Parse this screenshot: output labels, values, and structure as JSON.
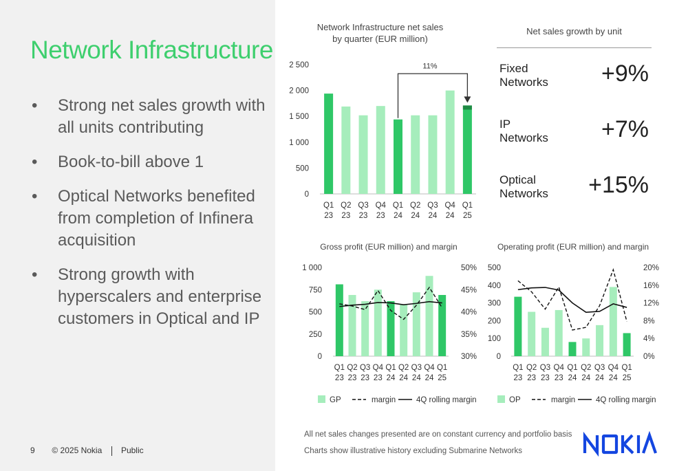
{
  "slide": {
    "title": "Network Infrastructure",
    "bullets": [
      "Strong net sales growth with all units contributing",
      "Book-to-bill above 1",
      "Optical Networks benefited from completion of Infinera acquisition",
      "Strong growth with hyperscalers and enterprise customers in Optical and IP"
    ],
    "page_number": "9",
    "copyright": "© 2025 Nokia",
    "classification": "Public",
    "notes": [
      "All net sales changes presented are on constant currency and portfolio basis",
      "Charts show illustrative history excluding Submarine Networks"
    ],
    "logo_text": "NOKIA"
  },
  "growth_panel": {
    "title": "Net sales growth by unit",
    "units": [
      {
        "name_line1": "Fixed",
        "name_line2": "Networks",
        "value": "+9%"
      },
      {
        "name_line1": "IP",
        "name_line2": "Networks",
        "value": "+7%"
      },
      {
        "name_line1": "Optical",
        "name_line2": "Networks",
        "value": "+15%"
      }
    ]
  },
  "colors": {
    "accent_green": "#3ecf6e",
    "bar_dark": "#2fc767",
    "bar_light": "#a6edbc",
    "bar_darkest": "#1f8a44",
    "brand_blue": "#1446e0"
  },
  "chart_data": [
    {
      "id": "net_sales",
      "type": "bar",
      "title_line1": "Network Infrastructure net sales",
      "title_line2": "by quarter (EUR million)",
      "categories": [
        [
          "Q1",
          "23"
        ],
        [
          "Q2",
          "23"
        ],
        [
          "Q3",
          "23"
        ],
        [
          "Q4",
          "23"
        ],
        [
          "Q1",
          "24"
        ],
        [
          "Q2",
          "24"
        ],
        [
          "Q3",
          "24"
        ],
        [
          "Q4",
          "24"
        ],
        [
          "Q1",
          "25"
        ]
      ],
      "values": [
        1940,
        1690,
        1520,
        1700,
        1440,
        1520,
        1520,
        2000,
        1710
      ],
      "highlight": [
        true,
        false,
        false,
        false,
        true,
        false,
        false,
        false,
        true
      ],
      "last_bar_top_segment": 80,
      "yticks": [
        0,
        500,
        1000,
        1500,
        2000,
        2500
      ],
      "ytick_labels": [
        "0",
        "500",
        "1 000",
        "1 500",
        "2 000",
        "2 500"
      ],
      "ylim": [
        0,
        2500
      ],
      "annotation": "11%"
    },
    {
      "id": "gross_profit",
      "type": "bar+line",
      "title": "Gross profit (EUR million) and margin",
      "categories": [
        [
          "Q1",
          "23"
        ],
        [
          "Q2",
          "23"
        ],
        [
          "Q3",
          "23"
        ],
        [
          "Q4",
          "23"
        ],
        [
          "Q1",
          "24"
        ],
        [
          "Q2",
          "24"
        ],
        [
          "Q3",
          "24"
        ],
        [
          "Q4",
          "24"
        ],
        [
          "Q1",
          "25"
        ]
      ],
      "values": [
        810,
        690,
        620,
        750,
        620,
        580,
        720,
        905,
        690
      ],
      "highlight": [
        true,
        false,
        false,
        false,
        true,
        false,
        false,
        false,
        true
      ],
      "ylim": [
        0,
        1000
      ],
      "yticks": [
        0,
        250,
        500,
        750,
        1000
      ],
      "ytick_labels": [
        "0",
        "250",
        "500",
        "750",
        "1 000"
      ],
      "y2lim": [
        30,
        50
      ],
      "y2ticks": [
        30,
        35,
        40,
        45,
        50
      ],
      "y2tick_labels": [
        "30%",
        "35%",
        "40%",
        "45%",
        "50%"
      ],
      "margin": [
        41.8,
        41.3,
        40.5,
        44.8,
        40.3,
        38.3,
        41.5,
        45.5,
        40.9
      ],
      "rolling_margin": [
        41.2,
        41.5,
        41.7,
        42.1,
        42.0,
        41.6,
        41.9,
        42.3,
        42.0
      ],
      "legend": [
        "GP",
        "margin",
        "4Q rolling margin"
      ]
    },
    {
      "id": "operating_profit",
      "type": "bar+line",
      "title": "Operating profit (EUR million) and margin",
      "categories": [
        [
          "Q1",
          "23"
        ],
        [
          "Q2",
          "23"
        ],
        [
          "Q3",
          "23"
        ],
        [
          "Q4",
          "23"
        ],
        [
          "Q1",
          "24"
        ],
        [
          "Q2",
          "24"
        ],
        [
          "Q3",
          "24"
        ],
        [
          "Q4",
          "24"
        ],
        [
          "Q1",
          "25"
        ]
      ],
      "values": [
        335,
        250,
        160,
        260,
        80,
        100,
        175,
        390,
        130
      ],
      "highlight": [
        true,
        false,
        false,
        false,
        true,
        false,
        false,
        false,
        true
      ],
      "ylim": [
        0,
        500
      ],
      "yticks": [
        0,
        100,
        200,
        300,
        400,
        500
      ],
      "ytick_labels": [
        "0",
        "100",
        "200",
        "300",
        "400",
        "500"
      ],
      "y2lim": [
        0,
        20
      ],
      "y2ticks": [
        0,
        4,
        8,
        12,
        16,
        20
      ],
      "y2tick_labels": [
        "0%",
        "4%",
        "8%",
        "12%",
        "16%",
        "20%"
      ],
      "margin": [
        17.0,
        14.5,
        10.6,
        15.6,
        5.9,
        6.5,
        11.4,
        19.5,
        7.8
      ],
      "rolling_margin": [
        15.0,
        15.4,
        15.5,
        14.9,
        12.0,
        9.9,
        10.1,
        11.8,
        11.0
      ],
      "legend": [
        "OP",
        "margin",
        "4Q rolling margin"
      ]
    }
  ]
}
